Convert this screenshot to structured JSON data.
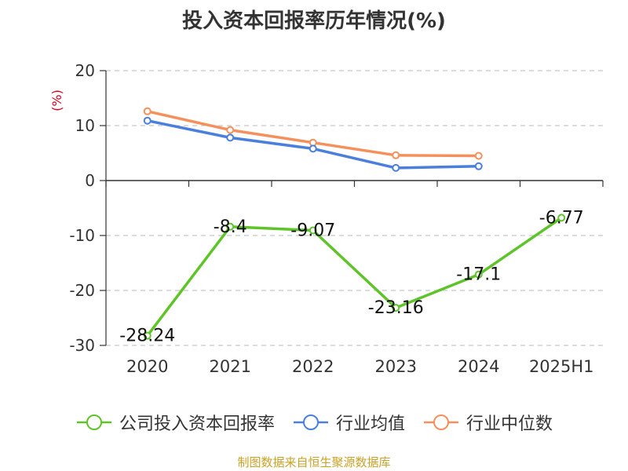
{
  "title": "投入资本回报率历年情况(%)",
  "source_note": "制图数据来自恒生聚源数据库",
  "chart_data": {
    "type": "line",
    "title": "投入资本回报率历年情况(%)",
    "ylabel": "(%)",
    "xlabel": "",
    "categories": [
      "2020",
      "2021",
      "2022",
      "2023",
      "2024",
      "2025H1"
    ],
    "ylim": [
      -30,
      20
    ],
    "yticks": [
      20,
      10,
      0,
      -10,
      -20,
      -30
    ],
    "grid": true,
    "legend_position": "bottom",
    "series": [
      {
        "name": "公司投入资本回报率",
        "color": "#5ec42a",
        "values": [
          -28.24,
          -8.4,
          -9.07,
          -23.16,
          -17.1,
          -6.77
        ],
        "labels": [
          "-28.24",
          "-8.4",
          "-9.07",
          "-23.16",
          "-17.1",
          "-6.77"
        ]
      },
      {
        "name": "行业均值",
        "color": "#4a7fdb",
        "values": [
          10.9,
          7.8,
          5.8,
          2.3,
          2.6,
          null
        ]
      },
      {
        "name": "行业中位数",
        "color": "#f5905c",
        "values": [
          12.6,
          9.2,
          6.9,
          4.6,
          4.5,
          null
        ]
      }
    ]
  }
}
